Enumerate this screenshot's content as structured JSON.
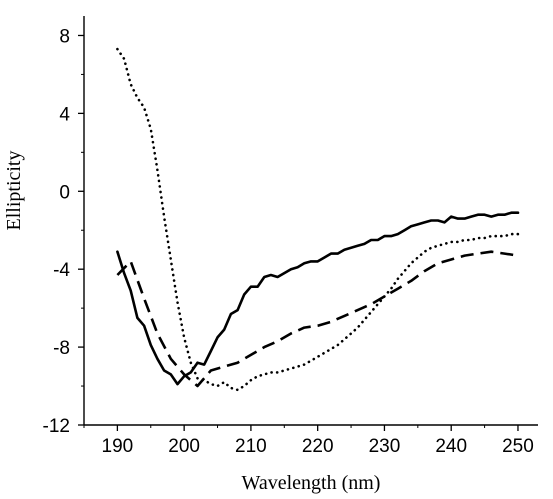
{
  "chart_data": {
    "type": "line",
    "title": "",
    "xlabel": "Wavelength (nm)",
    "ylabel": "Ellipticity",
    "xlim": [
      185,
      253
    ],
    "ylim": [
      -12,
      9
    ],
    "x_ticks": [
      190,
      200,
      210,
      220,
      230,
      240,
      250
    ],
    "y_ticks": [
      -12,
      -8,
      -4,
      0,
      4,
      8
    ],
    "x_tick_labels": [
      "190",
      "200",
      "210",
      "220",
      "230",
      "240",
      "250"
    ],
    "y_tick_labels": [
      "-12",
      "-8",
      "-4",
      "0",
      "4",
      "8"
    ],
    "grid": false,
    "legend": "none",
    "colors": {
      "line": "#000000",
      "axis": "#000000"
    },
    "series": [
      {
        "style": "solid",
        "x": [
          190,
          191,
          192,
          193,
          194,
          195,
          196,
          197,
          198,
          199,
          200,
          201,
          202,
          203,
          204,
          205,
          206,
          207,
          208,
          209,
          210,
          211,
          212,
          213,
          214,
          215,
          216,
          217,
          218,
          219,
          220,
          221,
          222,
          223,
          224,
          225,
          226,
          227,
          228,
          229,
          230,
          231,
          232,
          233,
          234,
          235,
          236,
          237,
          238,
          239,
          240,
          241,
          242,
          243,
          244,
          245,
          246,
          247,
          248,
          249,
          250
        ],
        "y": [
          -3.1,
          -4.2,
          -5.1,
          -6.5,
          -6.9,
          -7.9,
          -8.6,
          -9.2,
          -9.4,
          -9.9,
          -9.5,
          -9.3,
          -8.8,
          -8.9,
          -8.2,
          -7.5,
          -7.1,
          -6.3,
          -6.1,
          -5.3,
          -4.9,
          -4.9,
          -4.4,
          -4.3,
          -4.4,
          -4.2,
          -4.0,
          -3.9,
          -3.7,
          -3.6,
          -3.6,
          -3.4,
          -3.2,
          -3.2,
          -3.0,
          -2.9,
          -2.8,
          -2.7,
          -2.5,
          -2.5,
          -2.3,
          -2.3,
          -2.2,
          -2.0,
          -1.8,
          -1.7,
          -1.6,
          -1.5,
          -1.5,
          -1.6,
          -1.3,
          -1.4,
          -1.4,
          -1.3,
          -1.2,
          -1.2,
          -1.3,
          -1.2,
          -1.2,
          -1.1,
          -1.1
        ]
      },
      {
        "style": "dashed",
        "x": [
          190,
          192,
          194,
          196,
          198,
          200,
          202,
          204,
          206,
          208,
          210,
          212,
          214,
          216,
          218,
          220,
          222,
          224,
          226,
          228,
          230,
          232,
          234,
          236,
          238,
          240,
          242,
          244,
          246,
          248,
          250
        ],
        "y": [
          -4.3,
          -3.6,
          -5.5,
          -7.3,
          -8.6,
          -9.4,
          -10.0,
          -9.2,
          -9.0,
          -8.8,
          -8.4,
          -8.0,
          -7.7,
          -7.3,
          -7.0,
          -6.9,
          -6.7,
          -6.4,
          -6.1,
          -5.8,
          -5.4,
          -5.0,
          -4.6,
          -4.1,
          -3.7,
          -3.5,
          -3.3,
          -3.2,
          -3.1,
          -3.2,
          -3.3
        ]
      },
      {
        "style": "dotted",
        "x": [
          190,
          191,
          192,
          193,
          194,
          195,
          196,
          197,
          198,
          199,
          200,
          201,
          202,
          203,
          204,
          205,
          206,
          207,
          208,
          209,
          210,
          211,
          212,
          213,
          214,
          215,
          216,
          217,
          218,
          219,
          220,
          221,
          222,
          223,
          224,
          225,
          226,
          227,
          228,
          229,
          230,
          231,
          232,
          233,
          234,
          235,
          236,
          237,
          238,
          239,
          240,
          241,
          242,
          243,
          244,
          245,
          246,
          247,
          248,
          249,
          250
        ],
        "y": [
          7.3,
          6.8,
          5.5,
          4.8,
          4.3,
          3.2,
          1.1,
          -1.3,
          -3.5,
          -5.7,
          -7.5,
          -8.8,
          -9.6,
          -9.7,
          -9.9,
          -10.0,
          -9.8,
          -10.1,
          -10.2,
          -10.0,
          -9.7,
          -9.5,
          -9.4,
          -9.3,
          -9.3,
          -9.2,
          -9.1,
          -9.0,
          -8.9,
          -8.7,
          -8.5,
          -8.3,
          -8.1,
          -7.9,
          -7.6,
          -7.3,
          -7.0,
          -6.6,
          -6.2,
          -5.8,
          -5.4,
          -5.0,
          -4.5,
          -4.1,
          -3.7,
          -3.4,
          -3.1,
          -2.9,
          -2.8,
          -2.7,
          -2.6,
          -2.6,
          -2.5,
          -2.5,
          -2.4,
          -2.4,
          -2.3,
          -2.3,
          -2.3,
          -2.2,
          -2.2
        ]
      }
    ]
  }
}
